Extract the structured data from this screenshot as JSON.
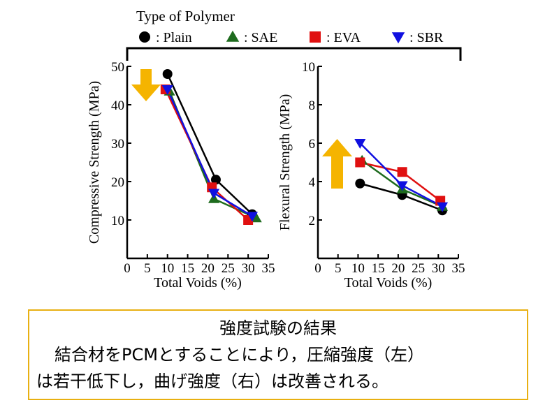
{
  "legend": {
    "title": "Type of Polymer",
    "entries": [
      {
        "key": "plain",
        "label": ": Plain",
        "color": "#000000",
        "marker": "circle"
      },
      {
        "key": "sae",
        "label": ": SAE",
        "color": "#1e6b1e",
        "marker": "triangle-up"
      },
      {
        "key": "eva",
        "label": ": EVA",
        "color": "#e01010",
        "marker": "square"
      },
      {
        "key": "sbr",
        "label": ": SBR",
        "color": "#1010e0",
        "marker": "triangle-down"
      }
    ]
  },
  "arrow_color": "#f5b400",
  "chart_data": [
    {
      "type": "line",
      "xlabel": "Total Voids (%)",
      "ylabel": "Compressive Strength (MPa)",
      "xlim": [
        0,
        35
      ],
      "ylim": [
        0,
        50
      ],
      "xticks": [
        "0",
        "5",
        "10",
        "15",
        "20",
        "25",
        "30",
        "35"
      ],
      "yticks": [
        "10",
        "20",
        "30",
        "40",
        "50"
      ],
      "annotation": "arrow-down",
      "series": [
        {
          "name": ": Plain",
          "x": [
            10,
            22,
            31
          ],
          "y": [
            48,
            20.5,
            11.5
          ]
        },
        {
          "name": ": SAE",
          "x": [
            10.5,
            21.5,
            32
          ],
          "y": [
            43.5,
            15.5,
            10.5
          ]
        },
        {
          "name": ": EVA",
          "x": [
            9.5,
            21,
            30
          ],
          "y": [
            44,
            18.5,
            10
          ]
        },
        {
          "name": ": SBR",
          "x": [
            10,
            21.5,
            31
          ],
          "y": [
            44,
            17,
            11
          ]
        }
      ]
    },
    {
      "type": "line",
      "xlabel": "Total Voids (%)",
      "ylabel": "Flexural Strength (MPa)",
      "xlim": [
        0,
        35
      ],
      "ylim": [
        0,
        10
      ],
      "xticks": [
        "0",
        "5",
        "10",
        "15",
        "20",
        "25",
        "30",
        "35"
      ],
      "yticks": [
        "2",
        "4",
        "6",
        "8",
        "10"
      ],
      "annotation": "arrow-up",
      "series": [
        {
          "name": ": Plain",
          "x": [
            10.5,
            21,
            31
          ],
          "y": [
            3.9,
            3.3,
            2.5
          ]
        },
        {
          "name": ": SAE",
          "x": [
            11,
            21,
            31
          ],
          "y": [
            5.1,
            3.6,
            2.7
          ]
        },
        {
          "name": ": EVA",
          "x": [
            10.5,
            21,
            30.5
          ],
          "y": [
            5,
            4.5,
            3
          ]
        },
        {
          "name": ": SBR",
          "x": [
            10.5,
            21,
            31
          ],
          "y": [
            6,
            3.8,
            2.7
          ]
        }
      ]
    }
  ],
  "caption": {
    "title": "強度試験の結果",
    "line2": "結合材をPCMとすることにより，圧縮強度（左）",
    "line3": "は若干低下し，曲げ強度（右）は改善される。",
    "border_color": "#e8b012"
  }
}
